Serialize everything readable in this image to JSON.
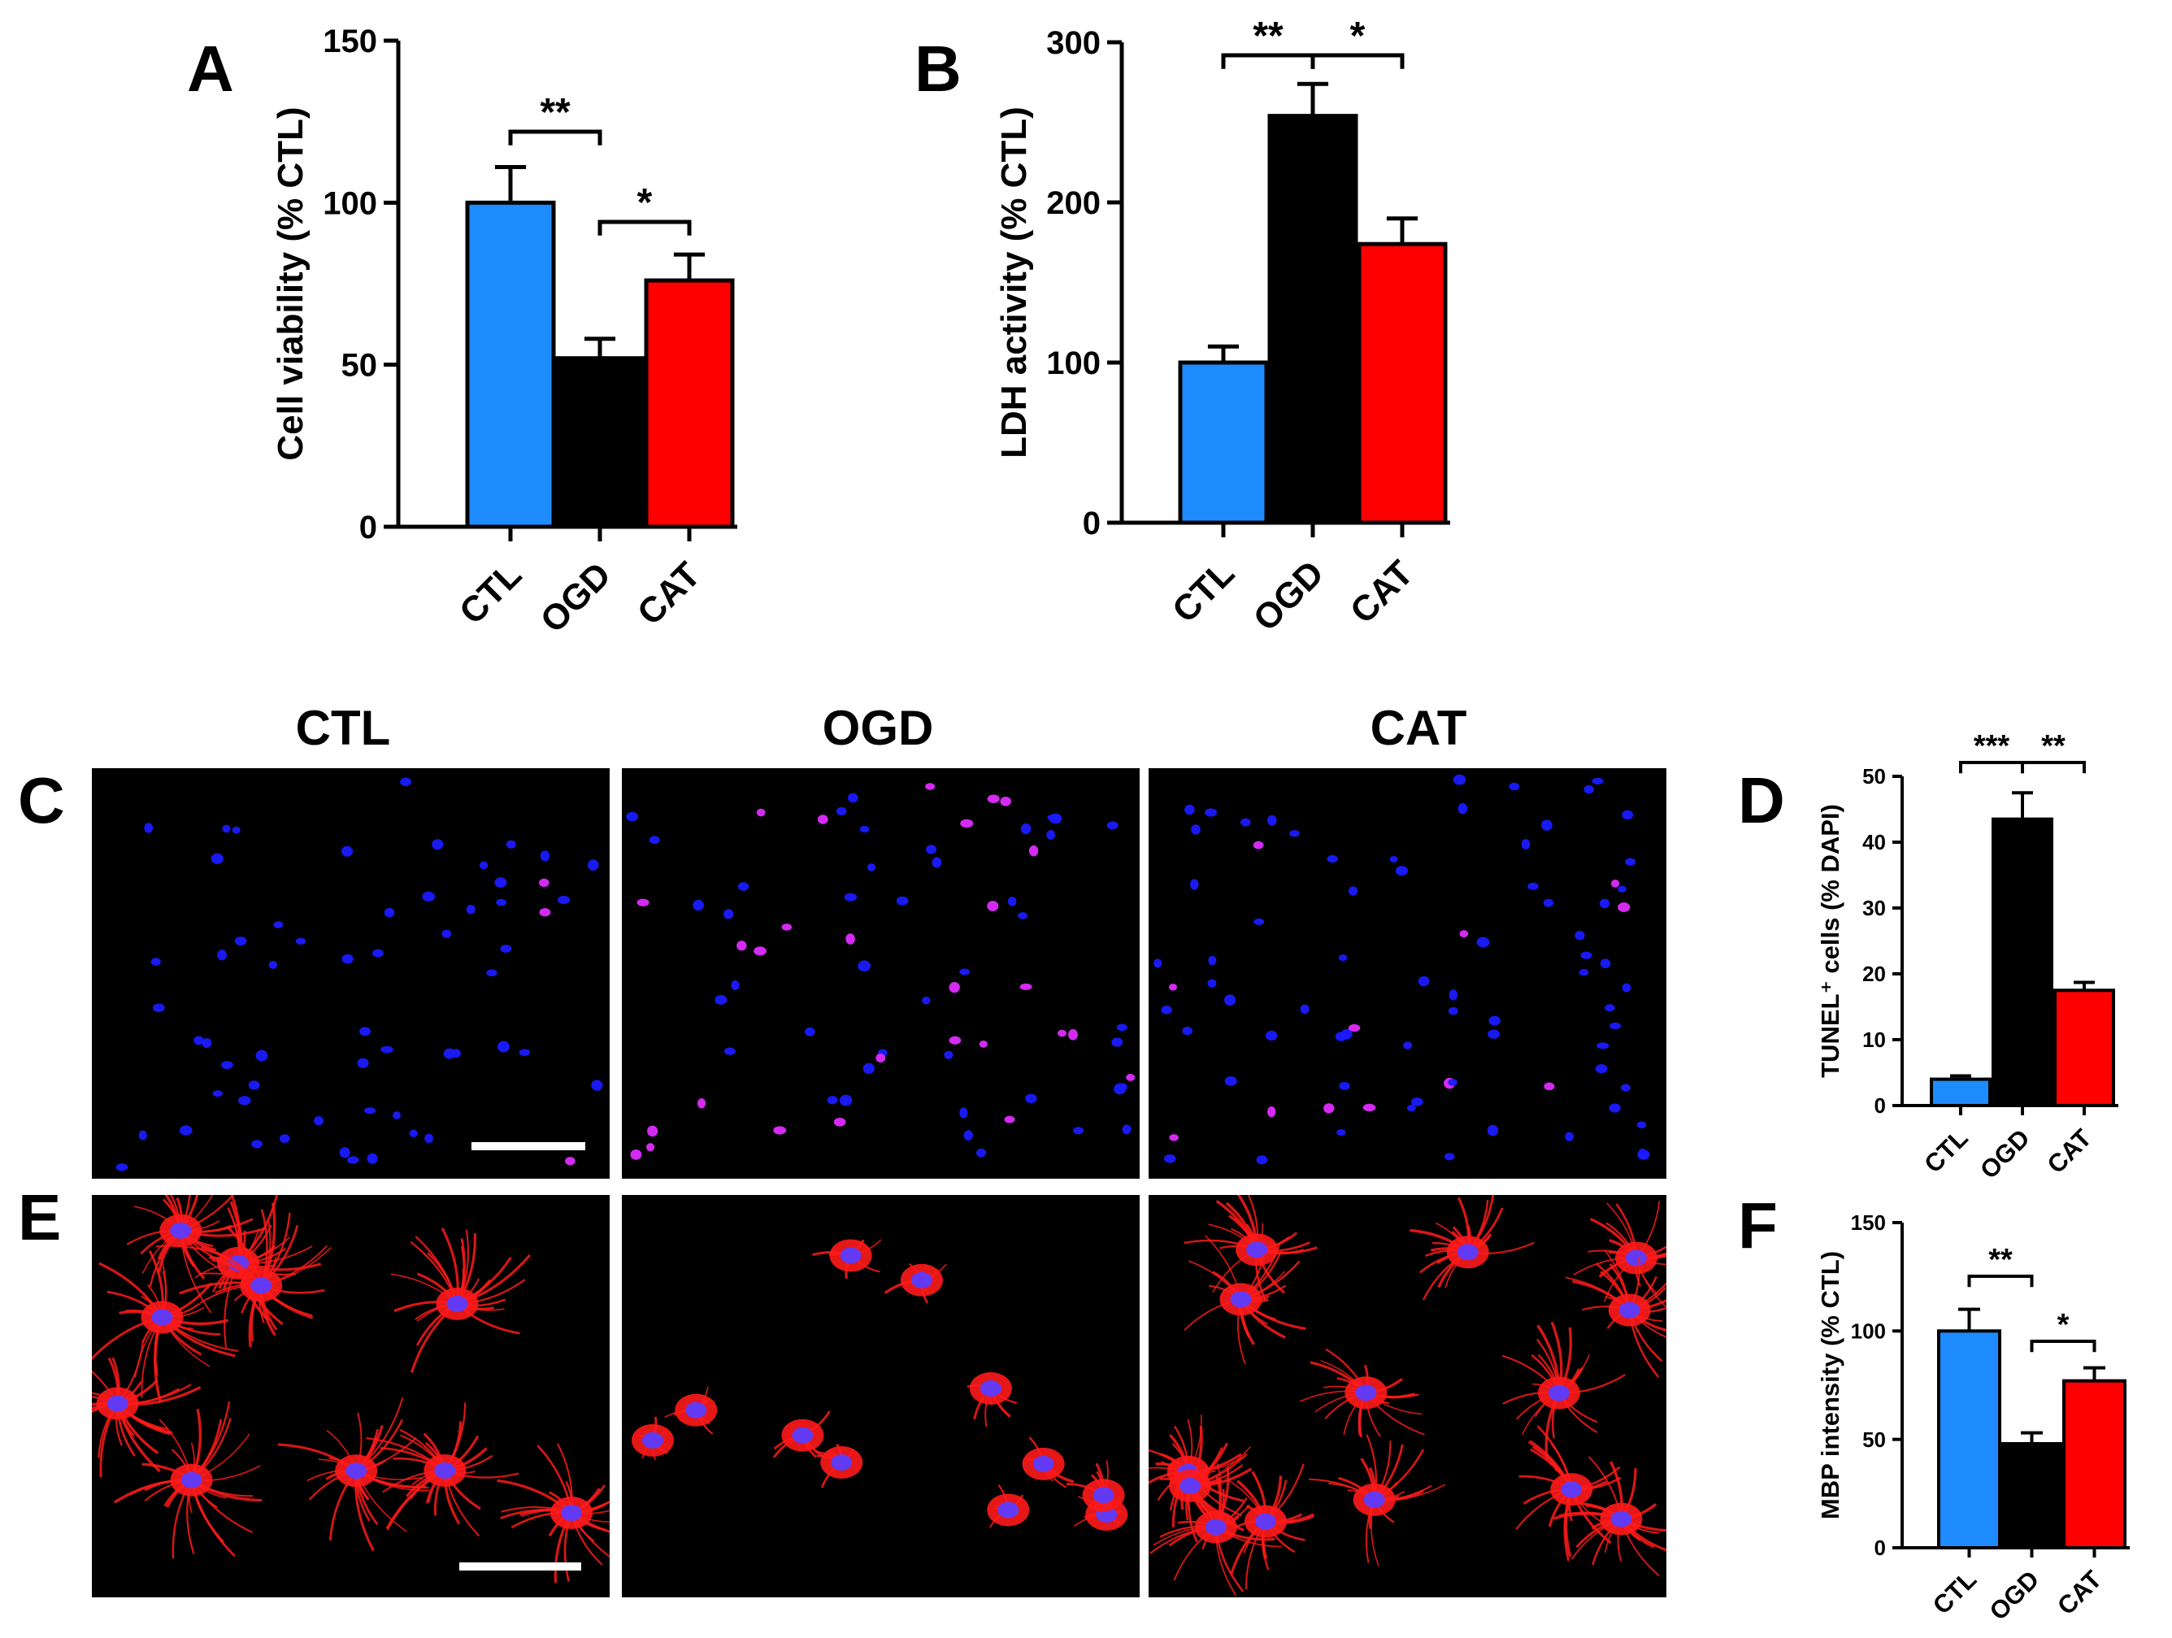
{
  "panel_letters": {
    "A": "A",
    "B": "B",
    "C": "C",
    "D": "D",
    "E": "E",
    "F": "F"
  },
  "column_titles": [
    "CTL",
    "OGD",
    "CAT"
  ],
  "colors": {
    "CTL": "#1e8bff",
    "OGD": "#000000",
    "CAT": "#ff0000",
    "micro_bg": "#000000",
    "nuclei": "#1a1aff",
    "tunel": "#e02cff",
    "mbp": "#ff1a1a"
  },
  "chart_data": [
    {
      "id": "A",
      "type": "bar",
      "categories": [
        "CTL",
        "OGD",
        "CAT"
      ],
      "values": [
        100,
        52,
        76
      ],
      "errors": [
        11,
        6,
        8
      ],
      "ylabel": "Cell viability (% CTL)",
      "ylim": [
        0,
        150
      ],
      "yticks": [
        "0",
        "50",
        "100",
        "150"
      ],
      "significance": [
        {
          "from": 0,
          "to": 1,
          "label": "**"
        },
        {
          "from": 1,
          "to": 2,
          "label": "*"
        }
      ]
    },
    {
      "id": "B",
      "type": "bar",
      "categories": [
        "CTL",
        "OGD",
        "CAT"
      ],
      "values": [
        100,
        254,
        174
      ],
      "errors": [
        10,
        20,
        16
      ],
      "ylabel": "LDH activity (% CTL)",
      "ylim": [
        0,
        300
      ],
      "yticks": [
        "0",
        "100",
        "200",
        "300"
      ],
      "significance": [
        {
          "from": 0,
          "to": 1,
          "label": "**"
        },
        {
          "from": 1,
          "to": 2,
          "label": "*"
        }
      ]
    },
    {
      "id": "D",
      "type": "bar",
      "categories": [
        "CTL",
        "OGD",
        "CAT"
      ],
      "values": [
        4,
        43.5,
        17.5
      ],
      "errors": [
        0.5,
        4,
        1.2
      ],
      "ylabel": "TUNEL⁺ cells (% DAPI)",
      "ylim": [
        0,
        50
      ],
      "yticks": [
        "0",
        "10",
        "20",
        "30",
        "40",
        "50"
      ],
      "significance": [
        {
          "from": 0,
          "to": 1,
          "label": "***"
        },
        {
          "from": 1,
          "to": 2,
          "label": "**"
        }
      ]
    },
    {
      "id": "F",
      "type": "bar",
      "categories": [
        "CTL",
        "OGD",
        "CAT"
      ],
      "values": [
        100,
        48,
        77
      ],
      "errors": [
        10,
        5,
        6
      ],
      "ylabel": "MBP intensity (% CTL)",
      "ylim": [
        0,
        150
      ],
      "yticks": [
        "0",
        "50",
        "100",
        "150"
      ],
      "significance": [
        {
          "from": 0,
          "to": 1,
          "label": "**"
        },
        {
          "from": 1,
          "to": 2,
          "label": "*"
        }
      ]
    }
  ]
}
